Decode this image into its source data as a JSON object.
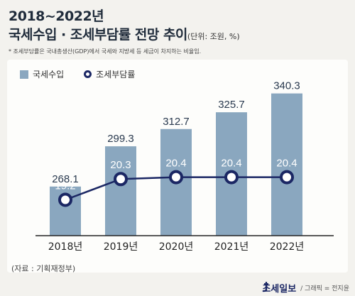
{
  "header": {
    "title_line1": "2018~2022년",
    "title_line2": "국세수입 · 조세부담률 전망 추이",
    "unit": "(단위: 조원, %)",
    "footnote": "* 조세부담률은 국내총생산(GDP)에서 국세와 지방세 등 세금이 차지하는 비율임."
  },
  "legend": {
    "bar_label": "국세수입",
    "line_label": "조세부담률"
  },
  "chart_data": {
    "type": "bar+line",
    "categories": [
      "2018년",
      "2019년",
      "2020년",
      "2021년",
      "2022년"
    ],
    "series": [
      {
        "name": "국세수입",
        "type": "bar",
        "values": [
          268.1,
          299.3,
          312.7,
          325.7,
          340.3
        ],
        "color": "#8aa7bf"
      },
      {
        "name": "조세부담률",
        "type": "line",
        "values": [
          19.2,
          20.3,
          20.4,
          20.4,
          20.4
        ],
        "color": "#1b2764"
      }
    ],
    "ylim_bars": [
      230,
      350
    ],
    "ylim_line": [
      17.3,
      25.5
    ]
  },
  "footer": {
    "source": "(자료 : 기획재정부)",
    "brand": "조세일보",
    "credit": "/ 그래픽 = 전지윤"
  }
}
